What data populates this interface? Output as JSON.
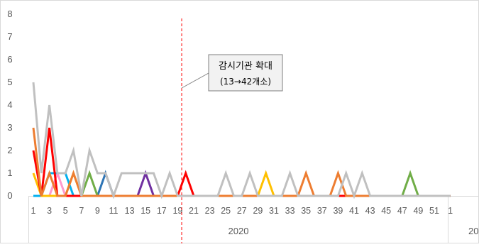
{
  "chart_data": {
    "type": "line",
    "title": "",
    "xlabel": "",
    "ylabel": "",
    "ylim": [
      0,
      8
    ],
    "y_ticks": [
      0,
      1,
      2,
      3,
      4,
      5,
      6,
      7,
      8
    ],
    "x_weeks": [
      1,
      2,
      3,
      4,
      5,
      6,
      7,
      8,
      9,
      10,
      11,
      12,
      13,
      14,
      15,
      16,
      17,
      18,
      19,
      20,
      21,
      22,
      23,
      24,
      25,
      26,
      27,
      28,
      29,
      30,
      31,
      32,
      33,
      34,
      35,
      36,
      37,
      38,
      39,
      40,
      41,
      42,
      43,
      44,
      45,
      46,
      47,
      48,
      49,
      50,
      51,
      52,
      53
    ],
    "x_tick_labels": [
      "1",
      "3",
      "5",
      "7",
      "9",
      "11",
      "13",
      "15",
      "17",
      "19",
      "21",
      "23",
      "25",
      "27",
      "29",
      "31",
      "33",
      "35",
      "37",
      "39",
      "41",
      "43",
      "45",
      "47",
      "49",
      "51",
      "1"
    ],
    "x_tick_weeks": [
      1,
      3,
      5,
      7,
      9,
      11,
      13,
      15,
      17,
      19,
      21,
      23,
      25,
      27,
      29,
      31,
      33,
      35,
      37,
      39,
      41,
      43,
      45,
      47,
      49,
      51,
      53
    ],
    "year_labels": [
      {
        "label": "2020",
        "from_week": 1,
        "to_week": 52
      },
      {
        "label": "20",
        "from_week": 53,
        "to_week": 60
      }
    ],
    "series": [
      {
        "color": "#c0c0c0",
        "values": [
          5,
          1,
          4,
          1,
          1,
          2,
          0,
          2,
          1,
          1,
          0,
          1,
          1,
          1,
          1,
          1,
          0,
          1,
          0,
          0,
          0,
          0,
          0,
          0,
          1,
          0,
          0,
          1,
          0,
          0,
          0,
          0,
          1,
          0,
          0,
          0,
          0,
          0,
          0,
          1,
          0,
          1,
          0,
          0,
          0,
          0,
          0,
          0,
          0,
          0,
          0,
          0,
          0
        ]
      },
      {
        "color": "#ed7d31",
        "values": [
          3,
          0,
          1,
          0,
          0,
          1,
          0,
          0,
          0,
          0,
          0,
          0,
          0,
          0,
          0,
          0,
          0,
          0,
          0,
          0,
          0,
          0,
          0,
          0,
          0,
          0,
          0,
          0,
          0,
          0,
          0,
          0,
          0,
          0,
          1,
          0,
          0,
          0,
          1,
          0,
          0,
          0,
          0,
          0,
          0,
          0,
          0,
          0,
          0,
          0,
          0,
          0,
          0
        ]
      },
      {
        "color": "#ff0000",
        "values": [
          2,
          0,
          3,
          0,
          0,
          0,
          0,
          0,
          0,
          0,
          0,
          0,
          0,
          0,
          0,
          0,
          0,
          0,
          0,
          1,
          0,
          0,
          0,
          0,
          0,
          0,
          0,
          0,
          0,
          0,
          0,
          0,
          0,
          0,
          0,
          0,
          0,
          0,
          0,
          0,
          0,
          0,
          0,
          0,
          0,
          0,
          0,
          0,
          0,
          0,
          0,
          0,
          0
        ]
      },
      {
        "color": "#ffc000",
        "values": [
          1,
          0,
          0,
          0,
          0,
          1,
          0,
          0,
          0,
          0,
          0,
          0,
          0,
          0,
          0,
          0,
          0,
          0,
          0,
          0,
          0,
          0,
          0,
          0,
          0,
          0,
          0,
          0,
          0,
          1,
          0,
          0,
          0,
          0,
          0,
          0,
          0,
          0,
          0,
          0,
          0,
          0,
          0,
          0,
          0,
          0,
          0,
          0,
          0,
          0,
          0,
          0,
          0
        ]
      },
      {
        "color": "#00b0f0",
        "values": [
          0,
          0,
          1,
          1,
          1,
          0,
          0,
          0,
          0,
          0,
          0,
          0,
          0,
          0,
          0,
          0,
          0,
          0,
          0,
          0,
          0,
          0,
          0,
          0,
          0,
          0,
          0,
          0,
          0,
          0,
          0,
          0,
          0,
          0,
          0,
          0,
          0,
          0,
          0,
          0,
          0,
          0,
          0,
          0,
          0,
          0,
          0,
          0,
          0,
          0,
          0,
          0,
          0
        ]
      },
      {
        "color": "#ff99cc",
        "values": [
          0,
          0,
          0,
          1,
          0,
          0,
          0,
          0,
          0,
          0,
          0,
          0,
          0,
          0,
          0,
          0,
          0,
          0,
          0,
          0,
          0,
          0,
          0,
          0,
          0,
          0,
          0,
          0,
          0,
          0,
          0,
          0,
          0,
          0,
          0,
          0,
          0,
          0,
          0,
          0,
          0,
          0,
          0,
          0,
          0,
          0,
          0,
          0,
          0,
          0,
          0,
          0,
          0
        ]
      },
      {
        "color": "#70ad47",
        "values": [
          0,
          0,
          0,
          0,
          0,
          0,
          0,
          1,
          0,
          0,
          0,
          0,
          0,
          0,
          0,
          0,
          0,
          0,
          0,
          0,
          0,
          0,
          0,
          0,
          0,
          0,
          0,
          0,
          0,
          0,
          0,
          0,
          0,
          0,
          0,
          0,
          0,
          0,
          0,
          0,
          0,
          0,
          0,
          0,
          0,
          0,
          0,
          1,
          0,
          0,
          0,
          0,
          0
        ]
      },
      {
        "color": "#2e75b6",
        "values": [
          0,
          0,
          0,
          0,
          0,
          0,
          0,
          0,
          0,
          1,
          0,
          0,
          0,
          0,
          0,
          0,
          0,
          0,
          0,
          0,
          0,
          0,
          0,
          0,
          0,
          0,
          0,
          0,
          0,
          0,
          0,
          0,
          0,
          0,
          0,
          0,
          0,
          0,
          0,
          0,
          0,
          0,
          0,
          0,
          0,
          0,
          0,
          0,
          0,
          0,
          0,
          0,
          0
        ]
      },
      {
        "color": "#7030a0",
        "values": [
          0,
          0,
          0,
          0,
          0,
          0,
          0,
          0,
          0,
          0,
          0,
          0,
          0,
          0,
          1,
          0,
          0,
          0,
          0,
          0,
          0,
          0,
          0,
          0,
          0,
          0,
          0,
          0,
          0,
          0,
          0,
          0,
          0,
          0,
          0,
          0,
          0,
          0,
          0,
          0,
          0,
          0,
          0,
          0,
          0,
          0,
          0,
          0,
          0,
          0,
          0,
          0,
          0
        ]
      },
      {
        "color": "#9e480e",
        "values": [
          0,
          0,
          0,
          0,
          0,
          0,
          0,
          0,
          0,
          0,
          0,
          0,
          0,
          0,
          0,
          0,
          0,
          0,
          0,
          0,
          0,
          0,
          0,
          0,
          0,
          0,
          0,
          0,
          0,
          0,
          0,
          0,
          0,
          0,
          0,
          0,
          0,
          0,
          0,
          0,
          0,
          0,
          0,
          0,
          0,
          0,
          0,
          0,
          0,
          0,
          0,
          0,
          0
        ]
      }
    ],
    "reference_line": {
      "week": 19.5,
      "color": "#ff0000",
      "style": "dashed"
    },
    "annotation": {
      "line1": "감시기관 확대",
      "line2": "(13→42개소)",
      "week": 19.5,
      "y": 5
    },
    "grid": false,
    "legend": "none"
  }
}
